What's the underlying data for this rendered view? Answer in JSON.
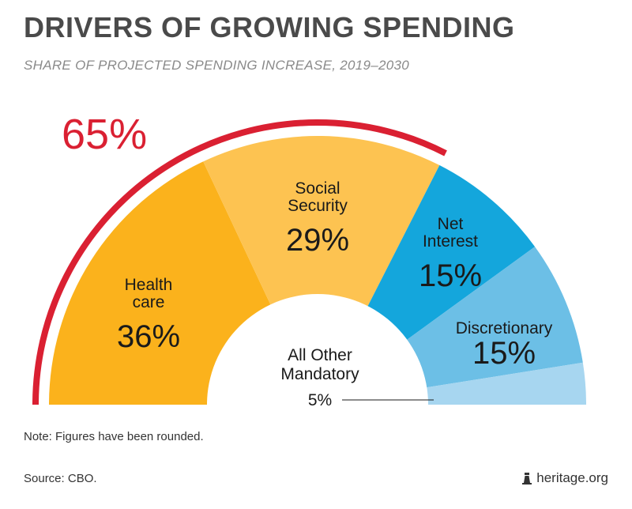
{
  "header": {
    "title": "DRIVERS OF GROWING SPENDING",
    "subtitle": "SHARE OF PROJECTED SPENDING INCREASE, 2019–2030"
  },
  "chart_data": {
    "type": "pie",
    "variant": "half-donut",
    "categories": [
      "Health care",
      "Social Security",
      "Net Interest",
      "Discretionary",
      "All Other Mandatory"
    ],
    "values": [
      36,
      29,
      15,
      15,
      5
    ],
    "labels": [
      {
        "lines": [
          "Health",
          "care"
        ],
        "value": "36%"
      },
      {
        "lines": [
          "Social",
          "Security"
        ],
        "value": "29%"
      },
      {
        "lines": [
          "Net",
          "Interest"
        ],
        "value": "15%"
      },
      {
        "lines": [
          "Discretionary"
        ],
        "value": "15%"
      },
      {
        "lines": [
          "All Other",
          "Mandatory"
        ],
        "value": "5%"
      }
    ],
    "colors": [
      "#fbb21c",
      "#fdc351",
      "#14a6dc",
      "#6cbfe6",
      "#a7d6f0"
    ],
    "highlight": {
      "label": "65%",
      "value": 65,
      "color": "#da2032"
    }
  },
  "footer": {
    "note": "Note: Figures have been rounded.",
    "source": "Source: CBO.",
    "brand": "heritage.org",
    "brand_icon": "lighthouse-icon"
  }
}
